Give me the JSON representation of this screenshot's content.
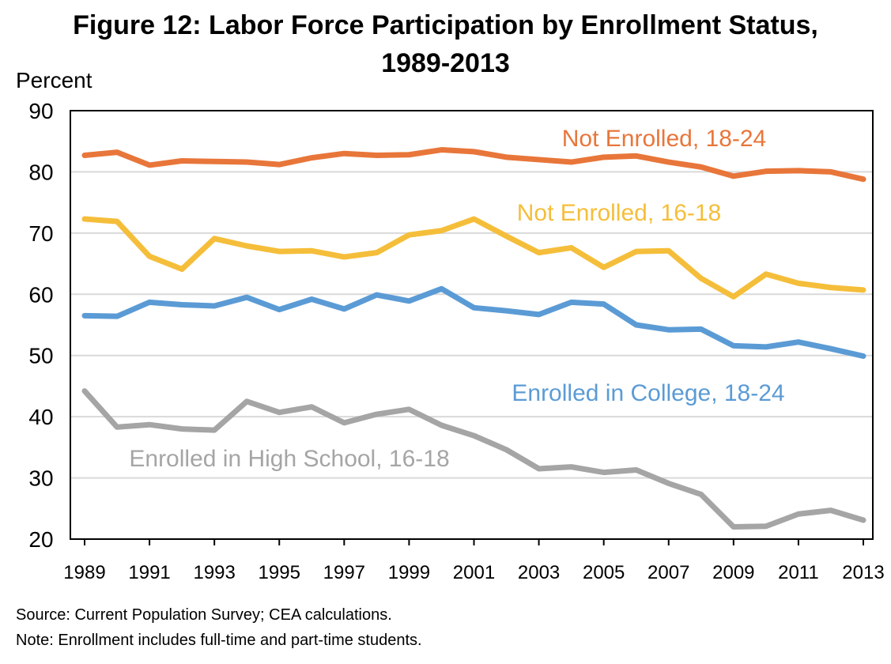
{
  "chart_data": {
    "type": "line",
    "title": "Figure 12: Labor Force Participation by Enrollment Status,",
    "title_line2": "1989-2013",
    "ylabel": "Percent",
    "xlabel": "",
    "ylim": [
      20,
      90
    ],
    "yticks": [
      20,
      30,
      40,
      50,
      60,
      70,
      80,
      90
    ],
    "xlim": [
      1989,
      2013
    ],
    "xticks": [
      1989,
      1991,
      1993,
      1995,
      1997,
      1999,
      2001,
      2003,
      2005,
      2007,
      2009,
      2011,
      2013
    ],
    "grid": true,
    "legend": "inline labels",
    "x": [
      1989,
      1990,
      1991,
      1992,
      1993,
      1994,
      1995,
      1996,
      1997,
      1998,
      1999,
      2000,
      2001,
      2002,
      2003,
      2004,
      2005,
      2006,
      2007,
      2008,
      2009,
      2010,
      2011,
      2012,
      2013
    ],
    "series": [
      {
        "name": "Not Enrolled, 18-24",
        "color": "#E8763A",
        "values": [
          82.7,
          83.2,
          81.1,
          81.8,
          81.7,
          81.6,
          81.2,
          82.3,
          83.0,
          82.7,
          82.8,
          83.6,
          83.3,
          82.4,
          82.0,
          81.6,
          82.4,
          82.6,
          81.6,
          80.8,
          79.3,
          80.1,
          80.2,
          80.0,
          78.8
        ]
      },
      {
        "name": "Not Enrolled, 16-18",
        "color": "#F5BE3A",
        "values": [
          72.3,
          71.9,
          66.2,
          64.1,
          69.1,
          67.9,
          67.0,
          67.1,
          66.1,
          66.8,
          69.7,
          70.4,
          72.3,
          69.5,
          66.8,
          67.6,
          64.4,
          67.0,
          67.1,
          62.6,
          59.6,
          63.3,
          61.8,
          61.1,
          60.7
        ]
      },
      {
        "name": "Enrolled in College, 18-24",
        "color": "#5B9BD5",
        "values": [
          56.5,
          56.4,
          58.7,
          58.3,
          58.1,
          59.5,
          57.5,
          59.2,
          57.6,
          59.9,
          58.9,
          60.9,
          57.8,
          57.3,
          56.7,
          58.7,
          58.4,
          55.0,
          54.2,
          54.3,
          51.6,
          51.4,
          52.2,
          51.1,
          49.9
        ]
      },
      {
        "name": "Enrolled in High School, 16-18",
        "color": "#A5A5A5",
        "values": [
          44.2,
          38.3,
          38.7,
          38.0,
          37.8,
          42.5,
          40.7,
          41.6,
          39.0,
          40.4,
          41.2,
          38.6,
          36.9,
          34.6,
          31.5,
          31.8,
          30.9,
          31.3,
          29.1,
          27.3,
          22.0,
          22.1,
          24.1,
          24.7,
          23.1
        ]
      }
    ]
  },
  "notes": {
    "source": "Source: Current Population Survey; CEA calculations.",
    "note": "Note: Enrollment includes full-time and part-time students."
  }
}
